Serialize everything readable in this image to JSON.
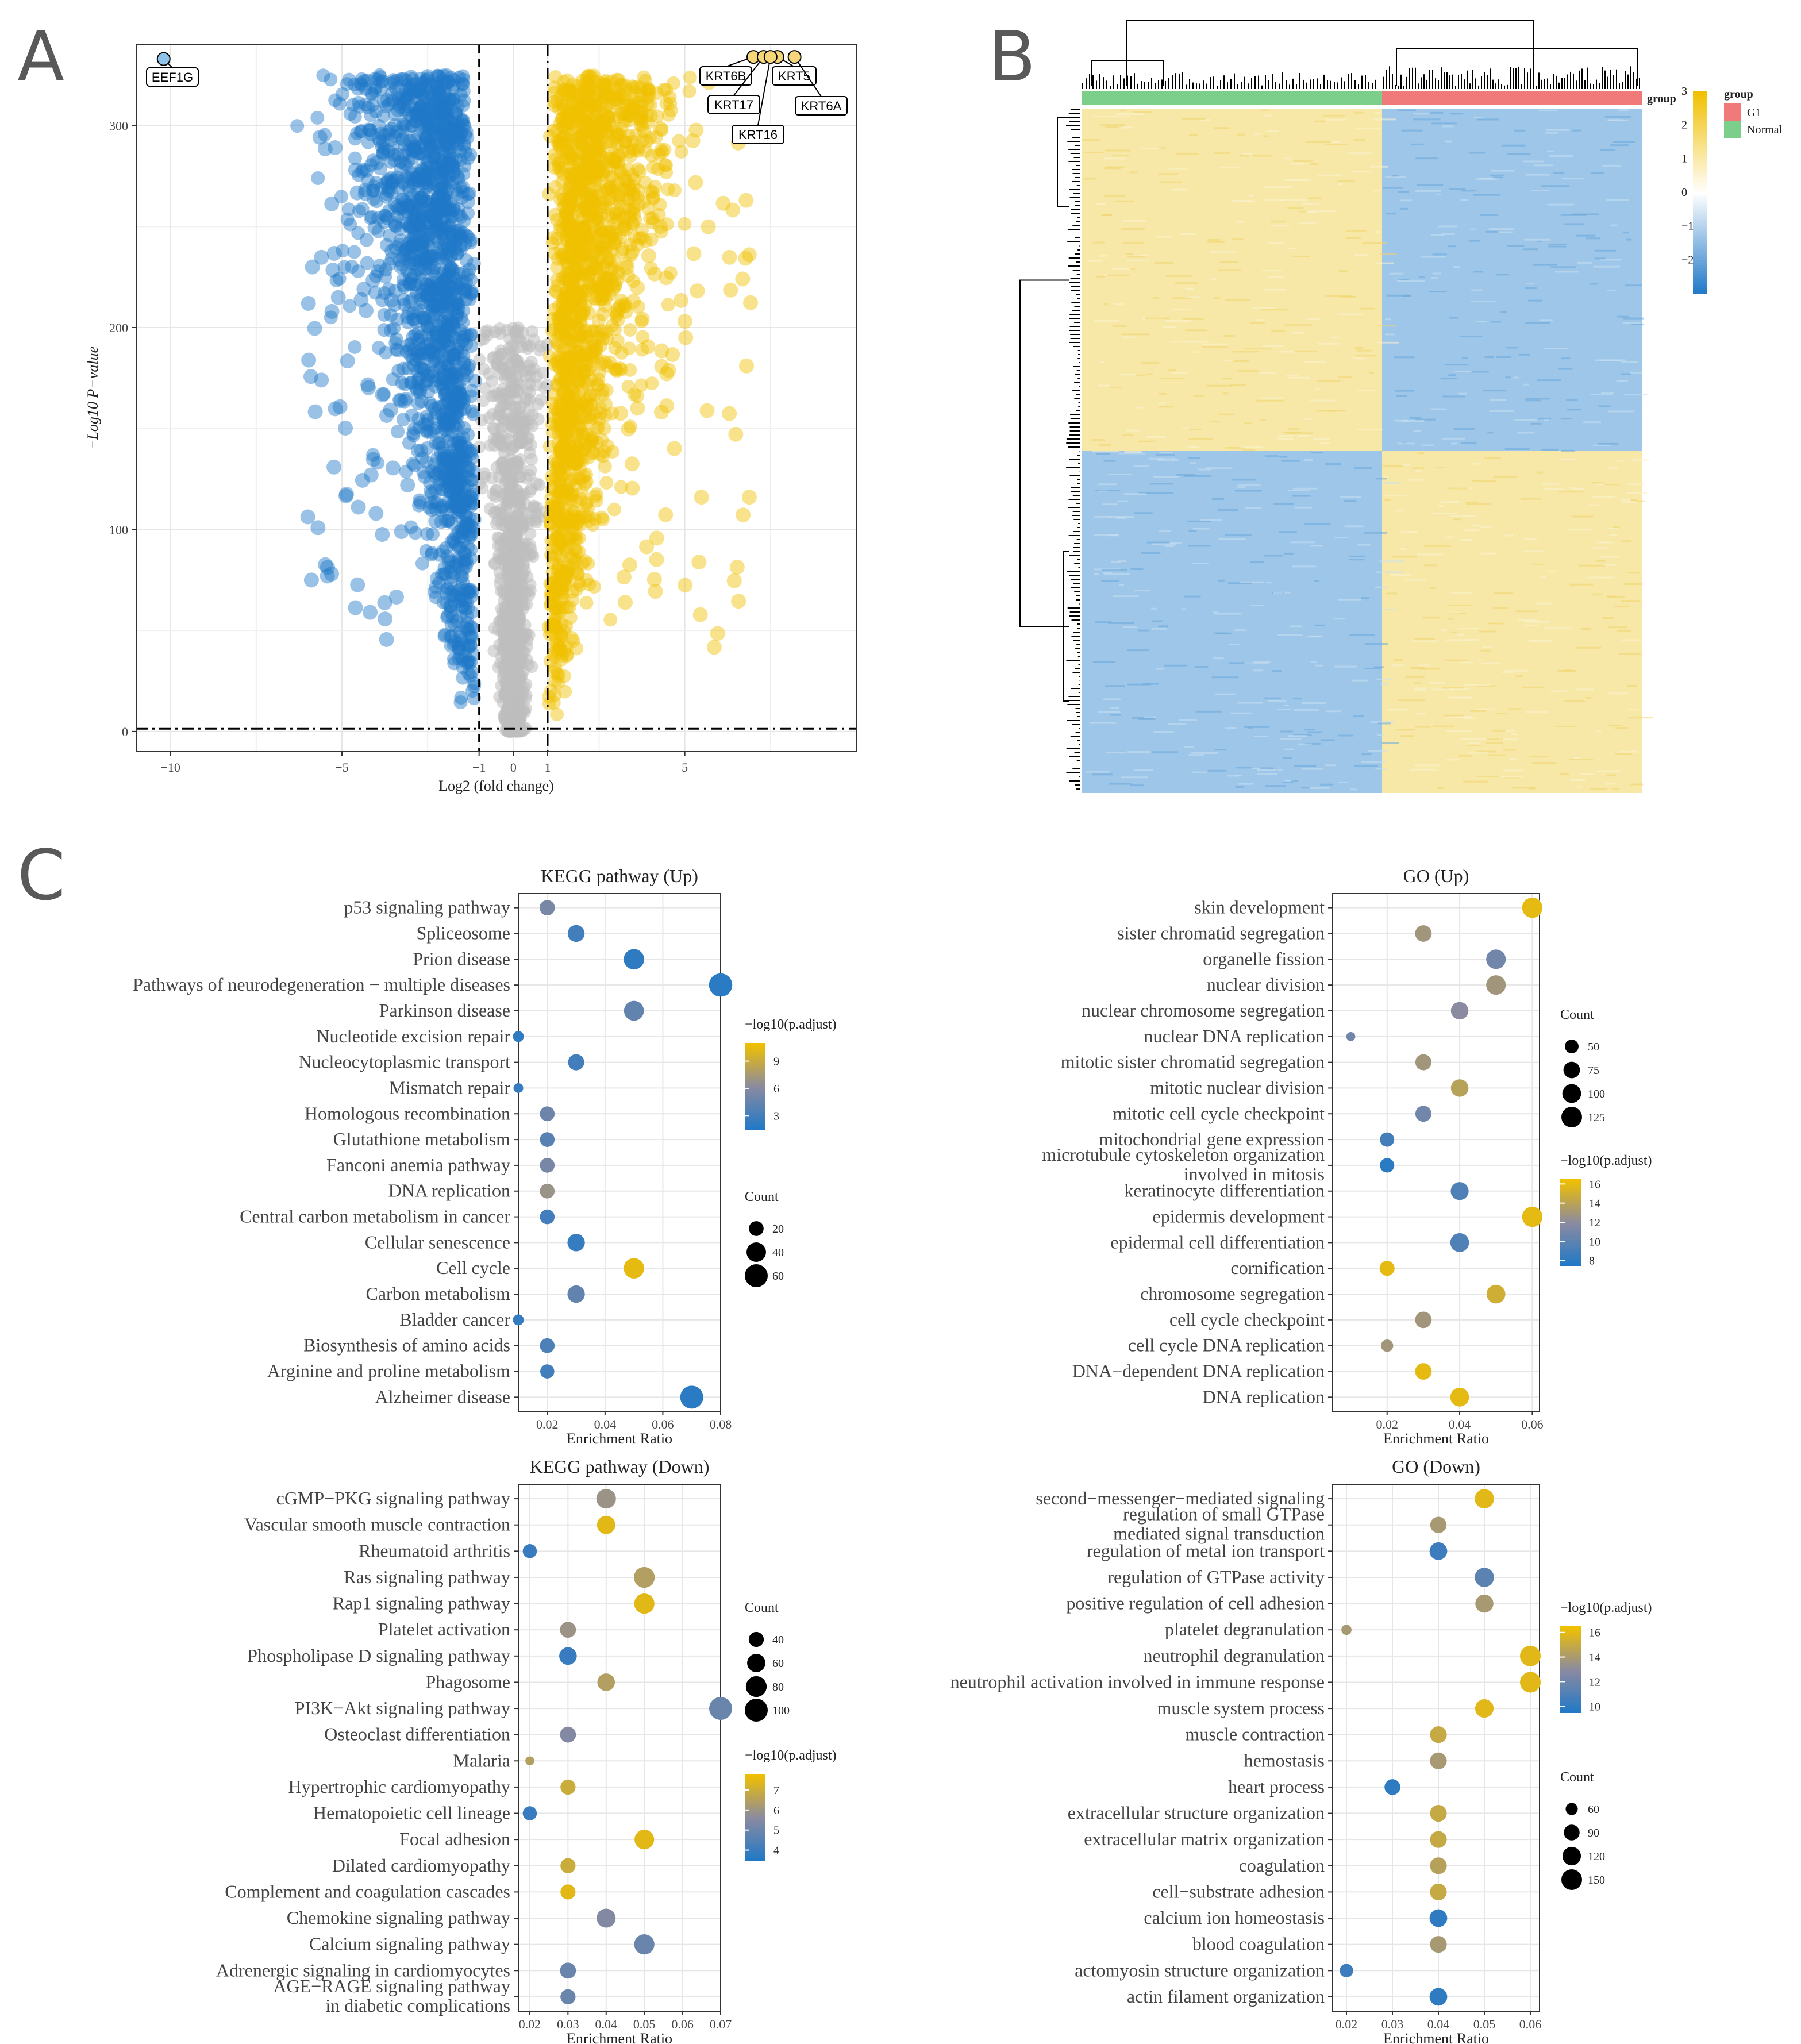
{
  "panel_labels": {
    "a": "A",
    "b": "B",
    "c": "C"
  },
  "colors": {
    "up": "#f0c000",
    "down": "#1f78c8",
    "ns": "#bdbdbd",
    "low": "#1f78c8",
    "high": "#f0c000",
    "g1": "#f07a7a",
    "normal": "#7ccf8a"
  },
  "chart_data": [
    {
      "id": "volcano",
      "type": "scatter",
      "xlabel": "Log2 (fold change)",
      "ylabel": "−Log10 P−value",
      "xlim": [
        -11,
        10
      ],
      "ylim": [
        -10,
        340
      ],
      "xticks": [
        "−10",
        "−5",
        "−1",
        "0",
        "1",
        "5"
      ],
      "xtick_values": [
        -10,
        -5,
        -1,
        0,
        1,
        5
      ],
      "yticks": [
        "0",
        "100",
        "200",
        "300"
      ],
      "ytick_values": [
        0,
        100,
        200,
        300
      ],
      "thresholds": {
        "fc": [
          -1,
          1
        ],
        "p": 1.3
      },
      "labeled_genes": [
        {
          "name": "EEF1G",
          "x": -10.2,
          "y": 333,
          "dir": "down"
        },
        {
          "name": "KRT6B",
          "x": 7.0,
          "y": 334,
          "dir": "up"
        },
        {
          "name": "KRT5",
          "x": 7.7,
          "y": 334,
          "dir": "up"
        },
        {
          "name": "KRT17",
          "x": 7.3,
          "y": 334,
          "dir": "up"
        },
        {
          "name": "KRT16",
          "x": 7.5,
          "y": 334,
          "dir": "up"
        },
        {
          "name": "KRT6A",
          "x": 8.2,
          "y": 334,
          "dir": "up"
        }
      ]
    },
    {
      "id": "heatmap",
      "type": "heatmap",
      "legend_title": "group",
      "group_labels": [
        "G1",
        "Normal"
      ],
      "annotation_label": "group",
      "scale_ticks": [
        "3",
        "2",
        "1",
        "0",
        "−1",
        "−2"
      ],
      "scale_values": [
        3,
        2,
        1,
        0,
        -1,
        -2
      ],
      "blocks": [
        {
          "rows": "top",
          "normal": "up",
          "g1": "down"
        },
        {
          "rows": "bottom",
          "normal": "down",
          "g1": "up"
        }
      ]
    },
    {
      "id": "kegg_up",
      "type": "scatter",
      "title": "KEGG pathway (Up)",
      "xlabel": "Enrichment Ratio",
      "xlim": [
        0.01,
        0.08
      ],
      "xticks": [
        "0.02",
        "0.04",
        "0.06",
        "0.08"
      ],
      "xtick_values": [
        0.02,
        0.04,
        0.06,
        0.08
      ],
      "color_legend": {
        "title": "−log10(p.adjust)",
        "min": 1.5,
        "max": 11,
        "ticks": [
          "9",
          "6",
          "3"
        ],
        "tick_values": [
          9,
          6,
          3
        ]
      },
      "size_legend": {
        "title": "Count",
        "ticks": [
          "20",
          "40",
          "60"
        ],
        "tick_values": [
          20,
          40,
          60
        ],
        "min": 5,
        "max": 60
      },
      "terms": [
        "p53 signaling pathway",
        "Spliceosome",
        "Prion disease",
        "Pathways of neurodegeneration − multiple diseases",
        "Parkinson disease",
        "Nucleotide excision repair",
        "Nucleocytoplasmic transport",
        "Mismatch repair",
        "Homologous recombination",
        "Glutathione metabolism",
        "Fanconi anemia pathway",
        "DNA replication",
        "Central carbon metabolism in cancer",
        "Cellular senescence",
        "Cell cycle",
        "Carbon metabolism",
        "Bladder cancer",
        "Biosynthesis of amino acids",
        "Arginine and proline metabolism",
        "Alzheimer disease"
      ],
      "x": [
        0.02,
        0.03,
        0.05,
        0.08,
        0.05,
        0.01,
        0.03,
        0.01,
        0.02,
        0.02,
        0.02,
        0.02,
        0.02,
        0.03,
        0.05,
        0.03,
        0.01,
        0.02,
        0.02,
        0.07
      ],
      "count": [
        22,
        28,
        45,
        62,
        42,
        10,
        25,
        8,
        20,
        20,
        20,
        20,
        20,
        30,
        45,
        30,
        10,
        20,
        18,
        60
      ],
      "padj": [
        5.5,
        3.0,
        2.2,
        2.0,
        4.5,
        2.2,
        3.0,
        2.5,
        5.0,
        4.0,
        5.5,
        7.0,
        3.0,
        2.5,
        10.5,
        4.5,
        2.5,
        3.5,
        3.0,
        2.0
      ]
    },
    {
      "id": "go_up",
      "type": "scatter",
      "title": "GO (Up)",
      "xlabel": "Enrichment Ratio",
      "xlim": [
        0.005,
        0.062
      ],
      "xticks": [
        "0.02",
        "0.04",
        "0.06"
      ],
      "xtick_values": [
        0.02,
        0.04,
        0.06
      ],
      "color_legend": {
        "title": "−log10(p.adjust)",
        "min": 7.5,
        "max": 16.5,
        "ticks": [
          "16",
          "14",
          "12",
          "10",
          "8"
        ],
        "tick_values": [
          16,
          14,
          12,
          10,
          8
        ]
      },
      "size_legend": {
        "title": "Count",
        "ticks": [
          "50",
          "75",
          "100",
          "125"
        ],
        "tick_values": [
          50,
          75,
          100,
          125
        ],
        "min": 20,
        "max": 125
      },
      "terms": [
        "skin development",
        "sister chromatid segregation",
        "organelle fission",
        "nuclear division",
        "nuclear chromosome segregation",
        "nuclear DNA replication",
        "mitotic sister chromatid segregation",
        "mitotic nuclear division",
        "mitotic cell cycle checkpoint",
        "mitochondrial gene expression",
        "microtubule cytoskeleton organization involved in mitosis",
        "keratinocyte differentiation",
        "epidermis development",
        "epidermal cell differentiation",
        "cornification",
        "chromosome segregation",
        "cell cycle checkpoint",
        "cell cycle DNA replication",
        "DNA−dependent DNA replication",
        "DNA replication"
      ],
      "x": [
        0.06,
        0.03,
        0.05,
        0.05,
        0.04,
        0.01,
        0.03,
        0.04,
        0.03,
        0.02,
        0.02,
        0.04,
        0.06,
        0.04,
        0.02,
        0.05,
        0.03,
        0.02,
        0.03,
        0.04
      ],
      "count": [
        120,
        75,
        110,
        110,
        85,
        25,
        70,
        85,
        70,
        55,
        55,
        90,
        120,
        100,
        60,
        100,
        75,
        40,
        75,
        100
      ],
      "padj": [
        16.0,
        13.0,
        11.0,
        13.0,
        12.0,
        11.0,
        13.0,
        14.0,
        11.0,
        9.0,
        8.0,
        9.5,
        16.0,
        9.5,
        16.0,
        15.0,
        13.0,
        13.0,
        16.0,
        16.0
      ]
    },
    {
      "id": "kegg_down",
      "type": "scatter",
      "title": "KEGG pathway (Down)",
      "xlabel": "Enrichment Ratio",
      "xlim": [
        0.017,
        0.07
      ],
      "xticks": [
        "0.02",
        "0.03",
        "0.04",
        "0.05",
        "0.06",
        "0.07"
      ],
      "xtick_values": [
        0.02,
        0.03,
        0.04,
        0.05,
        0.06,
        0.07
      ],
      "color_legend": {
        "title": "−log10(p.adjust)",
        "min": 3.5,
        "max": 7.8,
        "ticks": [
          "7",
          "6",
          "5",
          "4"
        ],
        "tick_values": [
          7,
          6,
          5,
          4
        ]
      },
      "size_legend": {
        "title": "Count",
        "ticks": [
          "40",
          "60",
          "80",
          "100"
        ],
        "tick_values": [
          40,
          60,
          80,
          100
        ],
        "min": 15,
        "max": 100
      },
      "terms": [
        "cGMP−PKG signaling pathway",
        "Vascular smooth muscle contraction",
        "Rheumatoid arthritis",
        "Ras signaling pathway",
        "Rap1 signaling pathway",
        "Platelet activation",
        "Phospholipase D signaling pathway",
        "Phagosome",
        "PI3K−Akt signaling pathway",
        "Osteoclast differentiation",
        "Malaria",
        "Hypertrophic cardiomyopathy",
        "Hematopoietic cell lineage",
        "Focal adhesion",
        "Dilated cardiomyopathy",
        "Complement and coagulation cascades",
        "Chemokine signaling pathway",
        "Calcium signaling pathway",
        "Adrenergic signaling in cardiomyocytes",
        "AGE−RAGE signaling pathway in diabetic complications"
      ],
      "x": [
        0.04,
        0.04,
        0.02,
        0.05,
        0.05,
        0.03,
        0.03,
        0.04,
        0.07,
        0.03,
        0.02,
        0.03,
        0.02,
        0.05,
        0.03,
        0.03,
        0.04,
        0.05,
        0.03,
        0.03
      ],
      "count": [
        70,
        60,
        35,
        80,
        75,
        45,
        55,
        55,
        100,
        45,
        18,
        40,
        35,
        70,
        40,
        40,
        65,
        75,
        45,
        40
      ],
      "padj": [
        6.0,
        7.5,
        4.0,
        6.5,
        7.5,
        6.0,
        4.0,
        6.5,
        5.0,
        5.5,
        6.5,
        7.0,
        4.0,
        7.5,
        7.0,
        7.5,
        5.5,
        5.0,
        5.0,
        5.0
      ]
    },
    {
      "id": "go_down",
      "type": "scatter",
      "title": "GO (Down)",
      "xlabel": "Enrichment Ratio",
      "xlim": [
        0.017,
        0.062
      ],
      "xticks": [
        "0.02",
        "0.03",
        "0.04",
        "0.05",
        "0.06"
      ],
      "xtick_values": [
        0.02,
        0.03,
        0.04,
        0.05,
        0.06
      ],
      "color_legend": {
        "title": "−log10(p.adjust)",
        "min": 9.5,
        "max": 16.5,
        "ticks": [
          "16",
          "14",
          "12",
          "10"
        ],
        "tick_values": [
          16,
          14,
          12,
          10
        ]
      },
      "size_legend": {
        "title": "Count",
        "ticks": [
          "60",
          "90",
          "120",
          "150"
        ],
        "tick_values": [
          60,
          90,
          120,
          150
        ],
        "min": 40,
        "max": 150
      },
      "terms": [
        "second−messenger−mediated signaling",
        "regulation of small GTPase mediated signal transduction",
        "regulation of metal ion transport",
        "regulation of GTPase activity",
        "positive regulation of cell adhesion",
        "platelet degranulation",
        "neutrophil degranulation",
        "neutrophil activation involved in immune response",
        "muscle system process",
        "muscle contraction",
        "hemostasis",
        "heart process",
        "extracellular structure organization",
        "extracellular matrix organization",
        "coagulation",
        "cell−substrate adhesion",
        "calcium ion homeostasis",
        "blood coagulation",
        "actomyosin structure organization",
        "actin filament organization"
      ],
      "x": [
        0.05,
        0.04,
        0.04,
        0.05,
        0.05,
        0.02,
        0.06,
        0.06,
        0.05,
        0.04,
        0.04,
        0.03,
        0.04,
        0.04,
        0.04,
        0.04,
        0.04,
        0.04,
        0.02,
        0.04
      ],
      "count": [
        130,
        95,
        110,
        130,
        115,
        50,
        150,
        150,
        120,
        100,
        100,
        90,
        100,
        100,
        100,
        100,
        110,
        100,
        70,
        110
      ],
      "padj": [
        16.0,
        14.0,
        10.5,
        11.5,
        14.0,
        14.0,
        16.0,
        16.0,
        16.0,
        15.0,
        14.0,
        10.0,
        15.0,
        15.0,
        14.5,
        15.0,
        10.0,
        14.0,
        10.5,
        10.0
      ]
    }
  ]
}
